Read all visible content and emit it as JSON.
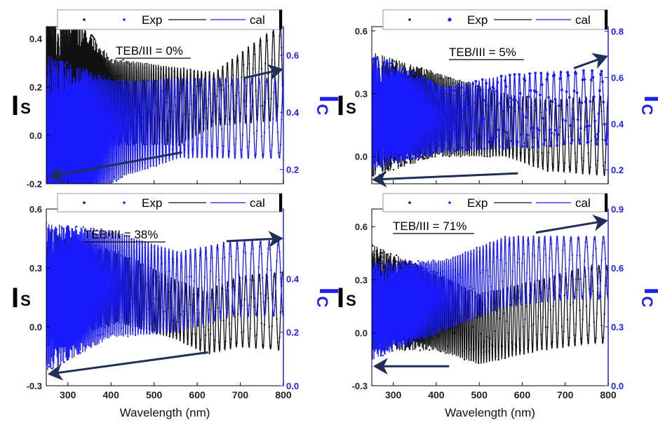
{
  "colors": {
    "black_series": "#111111",
    "blue_series": "#1a1aff",
    "blue_axis": "#2020ee",
    "arrow": "#1f2f5a"
  },
  "chart_data": [
    {
      "type": "line",
      "panel": "top-left",
      "annotation": "TEB/III = 0%",
      "xlabel": "",
      "ylabel_left": {
        "main": "I",
        "sub": "S"
      },
      "ylabel_right": {
        "main": "I",
        "sub": "C"
      },
      "xlim": [
        250,
        800
      ],
      "ylim_left": [
        -0.2,
        0.45
      ],
      "ylim_right": [
        0.15,
        0.7
      ],
      "xticks": [
        300,
        400,
        500,
        600,
        700,
        800
      ],
      "yticks_left": [
        -0.2,
        0.0,
        0.2,
        0.4
      ],
      "yticks_left_labels": [
        "-0.2",
        "0.0",
        "0.2",
        "0.4"
      ],
      "yticks_right": [
        0.2,
        0.4,
        0.6
      ],
      "yticks_right_labels": [
        "0.2",
        "0.4",
        "0.6"
      ],
      "show_xtick_labels": false,
      "legend": {
        "placement": "top",
        "labels": [
          "Exp",
          "cal"
        ]
      },
      "series": [
        {
          "axis": "left",
          "color": "black",
          "period": {
            "lam0": 28,
            "c": 22
          },
          "phase": 0,
          "envelope": [
            [
              250,
              0.28,
              0.36
            ],
            [
              400,
              0.14,
              0.18
            ],
            [
              560,
              0.12,
              0.16
            ],
            [
              640,
              0.15,
              0.11
            ],
            [
              760,
              0.24,
              0.18
            ],
            [
              800,
              0.26,
              0.2
            ]
          ]
        },
        {
          "axis": "right",
          "color": "blue",
          "period": {
            "lam0": 24,
            "c": 19
          },
          "phase": 0,
          "envelope": [
            [
              250,
              0.25,
              0.35
            ],
            [
              420,
              0.34,
              0.17
            ],
            [
              560,
              0.38,
              0.14
            ],
            [
              700,
              0.38,
              0.14
            ],
            [
              800,
              0.38,
              0.14
            ]
          ]
        }
      ],
      "arrows": [
        {
          "from": [
            565,
            -0.07
          ],
          "to": [
            260,
            -0.17
          ],
          "axis": "left"
        },
        {
          "from": [
            708,
            0.52
          ],
          "to": [
            795,
            0.55
          ],
          "axis": "right"
        }
      ]
    },
    {
      "type": "line",
      "panel": "top-right",
      "annotation": "TEB/III = 5%",
      "xlabel": "",
      "ylabel_left": {
        "main": "I",
        "sub": "S"
      },
      "ylabel_right": {
        "main": "I",
        "sub": "C"
      },
      "xlim": [
        250,
        800
      ],
      "ylim_left": [
        -0.13,
        0.62
      ],
      "ylim_right": [
        0.14,
        0.82
      ],
      "xticks": [
        300,
        400,
        500,
        600,
        700,
        800
      ],
      "yticks_left": [
        0.0,
        0.3,
        0.6
      ],
      "yticks_left_labels": [
        "0.0",
        "0.3",
        "0.6"
      ],
      "yticks_right": [
        0.2,
        0.4,
        0.6,
        0.8
      ],
      "yticks_right_labels": [
        "0.2",
        "0.4",
        "0.6",
        "0.8"
      ],
      "show_xtick_labels": false,
      "legend": {
        "placement": "top",
        "labels": [
          "Exp",
          "cal"
        ]
      },
      "series": [
        {
          "axis": "left",
          "color": "black",
          "period": {
            "lam0": 26,
            "c": 21
          },
          "phase": 0.6,
          "envelope": [
            [
              250,
              0.2,
              0.3
            ],
            [
              400,
              0.2,
              0.2
            ],
            [
              560,
              0.15,
              0.15
            ],
            [
              660,
              0.1,
              0.17
            ],
            [
              800,
              0.1,
              0.19
            ]
          ]
        },
        {
          "axis": "right",
          "color": "blue",
          "period": {
            "lam0": 22,
            "c": 18
          },
          "phase": 0.3,
          "envelope": [
            [
              250,
              0.45,
              0.25
            ],
            [
              420,
              0.42,
              0.14
            ],
            [
              560,
              0.45,
              0.16
            ],
            [
              720,
              0.47,
              0.16
            ],
            [
              800,
              0.47,
              0.16
            ]
          ]
        }
      ],
      "arrows": [
        {
          "from": [
            590,
            -0.08
          ],
          "to": [
            255,
            -0.11
          ],
          "axis": "left"
        },
        {
          "from": [
            720,
            0.64
          ],
          "to": [
            795,
            0.69
          ],
          "axis": "right"
        }
      ]
    },
    {
      "type": "line",
      "panel": "bottom-left",
      "annotation": "TEB/III = 38%",
      "xlabel": "Wavelength (nm)",
      "ylabel_left": {
        "main": "I",
        "sub": "S"
      },
      "ylabel_right": {
        "main": "I",
        "sub": "C"
      },
      "xlim": [
        250,
        800
      ],
      "ylim_left": [
        -0.3,
        0.6
      ],
      "ylim_right": [
        0.0,
        0.66
      ],
      "xticks": [
        300,
        400,
        500,
        600,
        700,
        800
      ],
      "yticks_left": [
        -0.3,
        0.0,
        0.3,
        0.6
      ],
      "yticks_left_labels": [
        "-0.3",
        "0.0",
        "0.3",
        "0.6"
      ],
      "yticks_right": [
        0.0,
        0.2,
        0.4
      ],
      "yticks_right_labels": [
        "0.0",
        "0.2",
        "0.4"
      ],
      "show_xtick_labels": true,
      "legend": {
        "placement": "top",
        "labels": [
          "Exp",
          "cal"
        ]
      },
      "series": [
        {
          "axis": "left",
          "color": "black",
          "period": {
            "lam0": 25,
            "c": 20
          },
          "phase": 0.2,
          "envelope": [
            [
              250,
              0.2,
              0.3
            ],
            [
              420,
              0.2,
              0.18
            ],
            [
              560,
              0.08,
              0.15
            ],
            [
              620,
              0.02,
              0.16
            ],
            [
              700,
              0.08,
              0.18
            ],
            [
              800,
              0.08,
              0.2
            ]
          ]
        },
        {
          "axis": "right",
          "color": "blue",
          "period": {
            "lam0": 22,
            "c": 18
          },
          "phase": 0.5,
          "envelope": [
            [
              250,
              0.33,
              0.28
            ],
            [
              400,
              0.38,
              0.2
            ],
            [
              560,
              0.35,
              0.15
            ],
            [
              680,
              0.4,
              0.14
            ],
            [
              800,
              0.4,
              0.14
            ]
          ]
        }
      ],
      "arrows": [
        {
          "from": [
            625,
            -0.13
          ],
          "to": [
            258,
            -0.24
          ],
          "axis": "left"
        },
        {
          "from": [
            668,
            0.54
          ],
          "to": [
            795,
            0.55
          ],
          "axis": "right"
        }
      ]
    },
    {
      "type": "line",
      "panel": "bottom-right",
      "annotation": "TEB/III = 71%",
      "xlabel": "Wavelength (nm)",
      "ylabel_left": {
        "main": "I",
        "sub": "S"
      },
      "ylabel_right": {
        "main": "I",
        "sub": "C"
      },
      "xlim": [
        250,
        800
      ],
      "ylim_left": [
        -0.3,
        0.7
      ],
      "ylim_right": [
        0.0,
        0.9
      ],
      "xticks": [
        300,
        400,
        500,
        600,
        700,
        800
      ],
      "yticks_left": [
        -0.3,
        0.0,
        0.3,
        0.6
      ],
      "yticks_left_labels": [
        "-0.3",
        "0.0",
        "0.3",
        "0.6"
      ],
      "yticks_right": [
        0.0,
        0.3,
        0.6,
        0.9
      ],
      "yticks_right_labels": [
        "0.0",
        "0.3",
        "0.6",
        "0.9"
      ],
      "show_xtick_labels": true,
      "legend": {
        "placement": "top",
        "labels": [
          "Exp",
          "cal"
        ]
      },
      "series": [
        {
          "axis": "left",
          "color": "black",
          "period": {
            "lam0": 26,
            "c": 21
          },
          "phase": 0.4,
          "envelope": [
            [
              250,
              0.2,
              0.3
            ],
            [
              400,
              0.12,
              0.22
            ],
            [
              500,
              0.02,
              0.2
            ],
            [
              640,
              0.1,
              0.2
            ],
            [
              760,
              0.16,
              0.22
            ],
            [
              800,
              0.16,
              0.22
            ]
          ]
        },
        {
          "axis": "right",
          "color": "blue",
          "period": {
            "lam0": 23,
            "c": 18
          },
          "phase": 0.1,
          "envelope": [
            [
              250,
              0.38,
              0.25
            ],
            [
              420,
              0.46,
              0.18
            ],
            [
              560,
              0.58,
              0.18
            ],
            [
              700,
              0.6,
              0.16
            ],
            [
              800,
              0.6,
              0.16
            ]
          ]
        }
      ],
      "arrows": [
        {
          "from": [
            430,
            -0.19
          ],
          "to": [
            258,
            -0.19
          ],
          "axis": "left"
        },
        {
          "from": [
            632,
            0.78
          ],
          "to": [
            795,
            0.84
          ],
          "axis": "right"
        }
      ]
    }
  ]
}
